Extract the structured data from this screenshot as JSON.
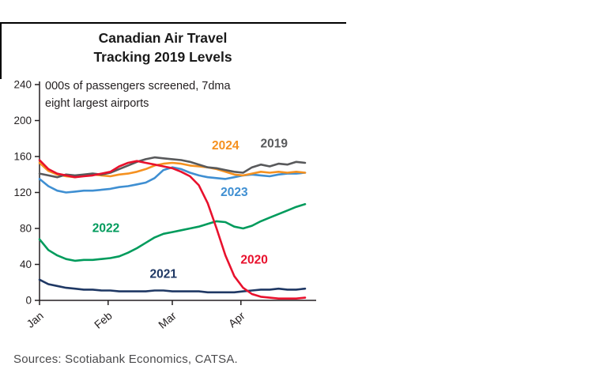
{
  "title": {
    "line1": "Canadian Air Travel",
    "line2": "Tracking 2019 Levels"
  },
  "subtitle": {
    "line1": "000s of passengers screened, 7dma",
    "line2": "eight largest airports"
  },
  "source": "Sources: Scotiabank Economics, CATSA.",
  "chart_data": {
    "type": "line",
    "title": "Canadian Air Travel Tracking 2019 Levels",
    "ylabel": "000s of passengers screened, 7dma, eight largest airports",
    "axis_color": "#231f20",
    "grid": false,
    "legend": "inline-labels",
    "ylim": [
      0,
      240
    ],
    "xlim": [
      0,
      125
    ],
    "yticks": [
      0,
      40,
      80,
      120,
      160,
      200,
      240
    ],
    "xticks": [
      {
        "label": "Jan",
        "day": 0
      },
      {
        "label": "Feb",
        "day": 31
      },
      {
        "label": "Mar",
        "day": 60
      },
      {
        "label": "Apr",
        "day": 91
      }
    ],
    "x_unit": "day of year (Jan 1 = 0)",
    "x": [
      0,
      4,
      8,
      12,
      16,
      20,
      24,
      28,
      32,
      36,
      40,
      44,
      48,
      52,
      56,
      60,
      64,
      68,
      72,
      76,
      80,
      84,
      88,
      92,
      96,
      100,
      104,
      108,
      112,
      116,
      120
    ],
    "series": [
      {
        "name": "2021",
        "color": "#1f3864",
        "label_pos": {
          "day": 56,
          "value": 25
        },
        "values": [
          23,
          18,
          16,
          14,
          13,
          12,
          12,
          11,
          11,
          10,
          10,
          10,
          10,
          11,
          11,
          10,
          10,
          10,
          10,
          9,
          9,
          9,
          9,
          10,
          11,
          12,
          12,
          13,
          12,
          12,
          13
        ]
      },
      {
        "name": "2022",
        "color": "#009b5c",
        "label_pos": {
          "day": 30,
          "value": 76
        },
        "values": [
          68,
          56,
          50,
          46,
          44,
          45,
          45,
          46,
          47,
          49,
          53,
          58,
          64,
          70,
          74,
          76,
          78,
          80,
          82,
          85,
          88,
          87,
          82,
          80,
          83,
          88,
          92,
          96,
          100,
          104,
          107
        ]
      },
      {
        "name": "2023",
        "color": "#3f8fd2",
        "label_pos": {
          "day": 88,
          "value": 116
        },
        "values": [
          135,
          127,
          122,
          120,
          121,
          122,
          122,
          123,
          124,
          126,
          127,
          129,
          131,
          136,
          145,
          148,
          146,
          142,
          139,
          137,
          136,
          135,
          137,
          139,
          140,
          139,
          138,
          140,
          141,
          141,
          142
        ]
      },
      {
        "name": "2024",
        "color": "#f59120",
        "label_pos": {
          "day": 84,
          "value": 168
        },
        "values": [
          153,
          144,
          140,
          138,
          137,
          139,
          140,
          139,
          138,
          140,
          141,
          143,
          146,
          150,
          152,
          153,
          152,
          150,
          149,
          148,
          146,
          143,
          140,
          139,
          141,
          143,
          142,
          143,
          142,
          143,
          142
        ]
      },
      {
        "name": "2019",
        "color": "#58595b",
        "label_pos": {
          "day": 106,
          "value": 170
        },
        "values": [
          141,
          139,
          137,
          140,
          139,
          140,
          141,
          140,
          142,
          146,
          150,
          154,
          157,
          159,
          158,
          157,
          156,
          154,
          151,
          148,
          147,
          145,
          143,
          142,
          148,
          151,
          149,
          152,
          151,
          154,
          153
        ]
      },
      {
        "name": "2020",
        "color": "#e8112d",
        "label_pos": {
          "day": 97,
          "value": 41
        },
        "values": [
          156,
          146,
          141,
          139,
          137,
          138,
          139,
          141,
          143,
          149,
          153,
          155,
          153,
          151,
          149,
          147,
          143,
          138,
          128,
          108,
          80,
          50,
          27,
          14,
          7,
          4,
          3,
          2,
          2,
          2,
          3
        ]
      }
    ]
  }
}
